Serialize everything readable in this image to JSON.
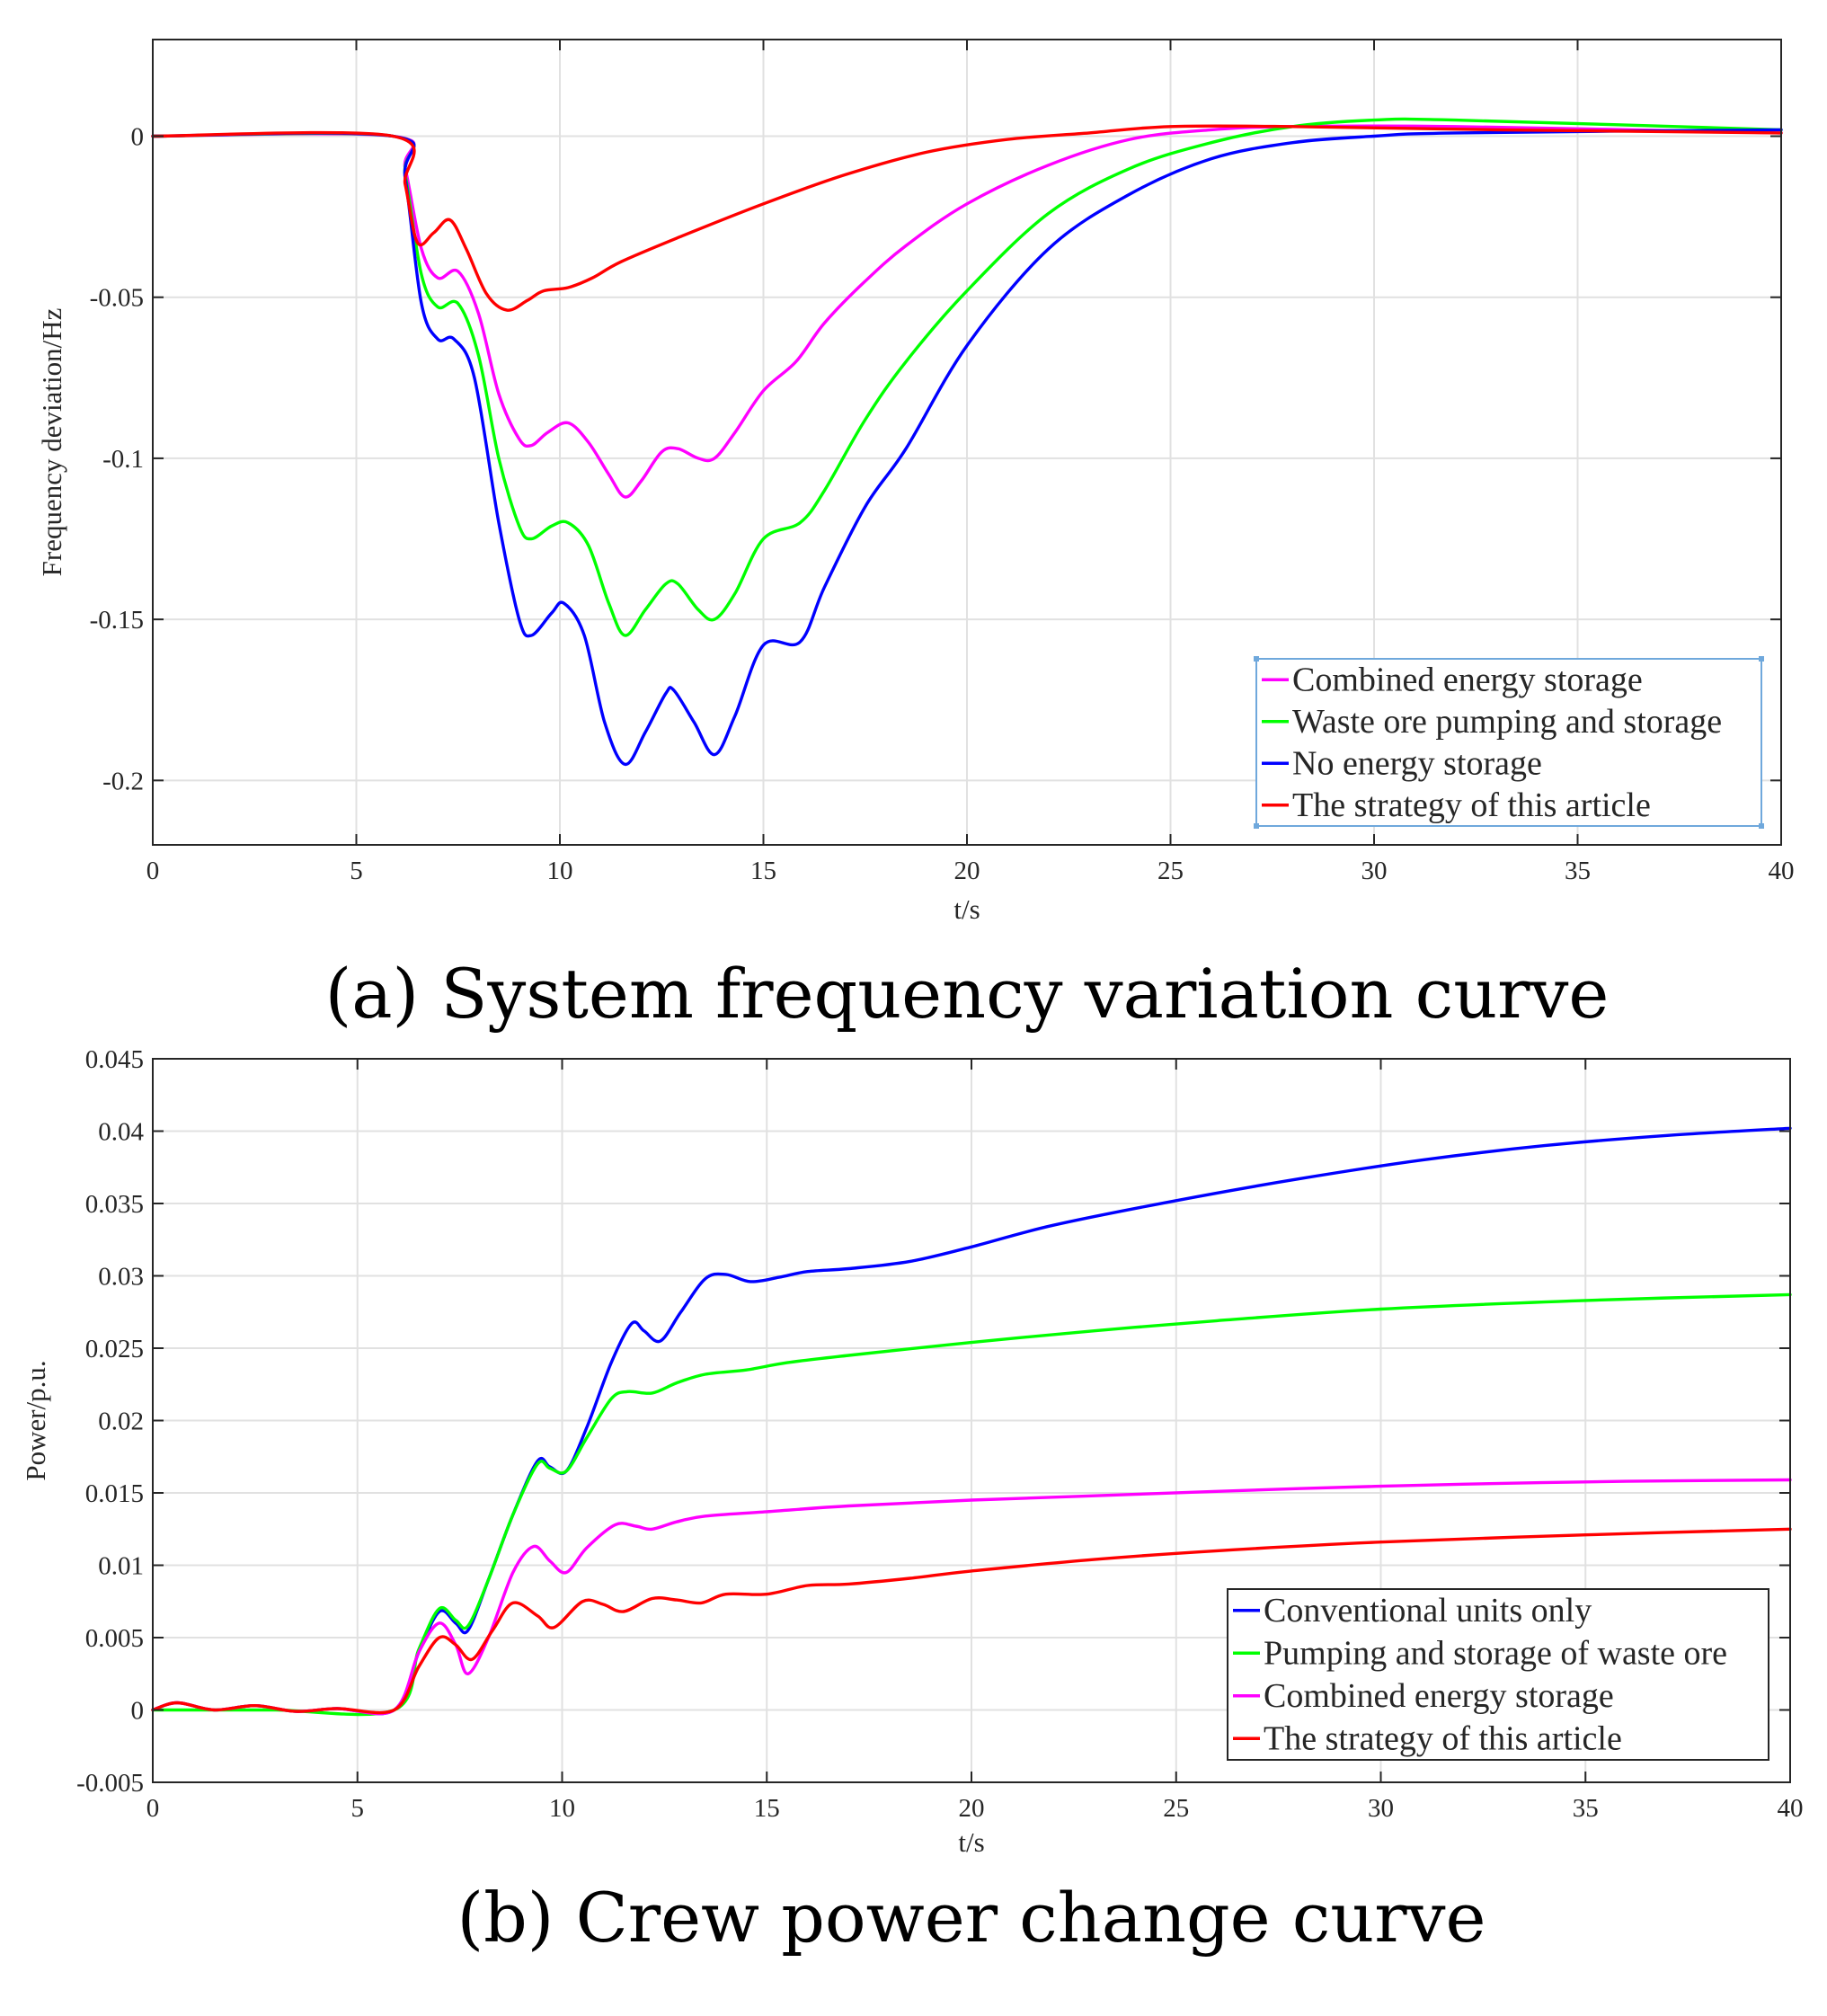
{
  "chart_data": [
    {
      "type": "line",
      "caption": "(a) System frequency variation curve",
      "xlabel": "t/s",
      "ylabel": "Frequency deviation/Hz",
      "xlim": [
        0,
        40
      ],
      "ylim": [
        -0.22,
        0.03
      ],
      "xticks": [
        0,
        5,
        10,
        15,
        20,
        25,
        30,
        35,
        40
      ],
      "yticks": [
        0,
        -0.05,
        -0.1,
        -0.15,
        -0.2
      ],
      "ytick_labels": [
        "0",
        "-0.05",
        "-0.1",
        "-0.15",
        "-0.2"
      ],
      "grid": true,
      "legend_position": "bottom-right",
      "series": [
        {
          "name": "Combined energy storage",
          "color": "#ff00ff",
          "points": [
            [
              0,
              0
            ],
            [
              5.9,
              0
            ],
            [
              6.2,
              -0.01
            ],
            [
              6.6,
              -0.035
            ],
            [
              7.0,
              -0.044
            ],
            [
              7.5,
              -0.042
            ],
            [
              8.0,
              -0.055
            ],
            [
              8.5,
              -0.08
            ],
            [
              9.0,
              -0.094
            ],
            [
              9.3,
              -0.096
            ],
            [
              9.7,
              -0.092
            ],
            [
              10.2,
              -0.089
            ],
            [
              10.7,
              -0.095
            ],
            [
              11.2,
              -0.105
            ],
            [
              11.6,
              -0.112
            ],
            [
              12.0,
              -0.107
            ],
            [
              12.5,
              -0.098
            ],
            [
              12.9,
              -0.097
            ],
            [
              13.4,
              -0.1
            ],
            [
              13.8,
              -0.1
            ],
            [
              14.3,
              -0.092
            ],
            [
              15.0,
              -0.079
            ],
            [
              15.8,
              -0.07
            ],
            [
              16.5,
              -0.058
            ],
            [
              17.5,
              -0.045
            ],
            [
              18.5,
              -0.034
            ],
            [
              20.0,
              -0.021
            ],
            [
              22.0,
              -0.009
            ],
            [
              24.0,
              -0.001
            ],
            [
              26.0,
              0.002
            ],
            [
              28.0,
              0.003
            ],
            [
              32.0,
              0.003
            ],
            [
              40.0,
              0.001
            ]
          ]
        },
        {
          "name": "Waste ore pumping and storage",
          "color": "#00ff00",
          "points": [
            [
              0,
              0
            ],
            [
              5.9,
              0
            ],
            [
              6.2,
              -0.012
            ],
            [
              6.6,
              -0.043
            ],
            [
              7.0,
              -0.053
            ],
            [
              7.5,
              -0.052
            ],
            [
              8.0,
              -0.068
            ],
            [
              8.5,
              -0.1
            ],
            [
              9.0,
              -0.121
            ],
            [
              9.3,
              -0.125
            ],
            [
              9.8,
              -0.121
            ],
            [
              10.2,
              -0.12
            ],
            [
              10.7,
              -0.127
            ],
            [
              11.2,
              -0.145
            ],
            [
              11.6,
              -0.155
            ],
            [
              12.1,
              -0.147
            ],
            [
              12.6,
              -0.139
            ],
            [
              12.9,
              -0.139
            ],
            [
              13.4,
              -0.147
            ],
            [
              13.8,
              -0.15
            ],
            [
              14.3,
              -0.142
            ],
            [
              15.0,
              -0.125
            ],
            [
              15.9,
              -0.12
            ],
            [
              16.5,
              -0.11
            ],
            [
              17.5,
              -0.088
            ],
            [
              18.5,
              -0.07
            ],
            [
              20.0,
              -0.048
            ],
            [
              22.0,
              -0.024
            ],
            [
              24.0,
              -0.01
            ],
            [
              26.0,
              -0.002
            ],
            [
              28.0,
              0.003
            ],
            [
              30.0,
              0.005
            ],
            [
              32.0,
              0.005
            ],
            [
              40.0,
              0.002
            ]
          ]
        },
        {
          "name": "No energy storage",
          "color": "#0000ff",
          "points": [
            [
              0,
              0
            ],
            [
              5.9,
              0
            ],
            [
              6.2,
              -0.013
            ],
            [
              6.6,
              -0.052
            ],
            [
              7.0,
              -0.063
            ],
            [
              7.4,
              -0.063
            ],
            [
              7.9,
              -0.075
            ],
            [
              8.5,
              -0.12
            ],
            [
              9.0,
              -0.15
            ],
            [
              9.3,
              -0.155
            ],
            [
              9.8,
              -0.148
            ],
            [
              10.1,
              -0.145
            ],
            [
              10.6,
              -0.155
            ],
            [
              11.1,
              -0.182
            ],
            [
              11.6,
              -0.195
            ],
            [
              12.1,
              -0.185
            ],
            [
              12.6,
              -0.173
            ],
            [
              12.8,
              -0.172
            ],
            [
              13.3,
              -0.182
            ],
            [
              13.8,
              -0.192
            ],
            [
              14.3,
              -0.18
            ],
            [
              15.0,
              -0.158
            ],
            [
              15.9,
              -0.157
            ],
            [
              16.5,
              -0.14
            ],
            [
              17.5,
              -0.115
            ],
            [
              18.5,
              -0.097
            ],
            [
              20.0,
              -0.065
            ],
            [
              22.0,
              -0.035
            ],
            [
              24.0,
              -0.018
            ],
            [
              26.0,
              -0.007
            ],
            [
              28.0,
              -0.002
            ],
            [
              30.0,
              0
            ],
            [
              32.0,
              0.001
            ],
            [
              40.0,
              0.002
            ]
          ]
        },
        {
          "name": "The strategy of this article",
          "color": "#ff0000",
          "points": [
            [
              0,
              0
            ],
            [
              5.9,
              0
            ],
            [
              6.2,
              -0.015
            ],
            [
              6.5,
              -0.033
            ],
            [
              6.9,
              -0.03
            ],
            [
              7.3,
              -0.026
            ],
            [
              7.7,
              -0.035
            ],
            [
              8.2,
              -0.049
            ],
            [
              8.7,
              -0.054
            ],
            [
              9.2,
              -0.051
            ],
            [
              9.6,
              -0.048
            ],
            [
              10.2,
              -0.047
            ],
            [
              10.8,
              -0.044
            ],
            [
              11.5,
              -0.039
            ],
            [
              13.0,
              -0.031
            ],
            [
              15.0,
              -0.021
            ],
            [
              17.0,
              -0.012
            ],
            [
              19.0,
              -0.005
            ],
            [
              21.0,
              -0.001
            ],
            [
              23.0,
              0.001
            ],
            [
              25.0,
              0.003
            ],
            [
              28.0,
              0.003
            ],
            [
              33.0,
              0.002
            ],
            [
              40.0,
              0.001
            ]
          ]
        }
      ]
    },
    {
      "type": "line",
      "caption": "(b) Crew power change curve",
      "xlabel": "t/s",
      "ylabel": "Power/p.u.",
      "xlim": [
        0,
        40
      ],
      "ylim": [
        -0.005,
        0.045
      ],
      "xticks": [
        0,
        5,
        10,
        15,
        20,
        25,
        30,
        35,
        40
      ],
      "yticks": [
        -0.005,
        0,
        0.005,
        0.01,
        0.015,
        0.02,
        0.025,
        0.03,
        0.035,
        0.04,
        0.045
      ],
      "ytick_labels": [
        "-0.005",
        "0",
        "0.005",
        "0.01",
        "0.015",
        "0.02",
        "0.025",
        "0.03",
        "0.035",
        "0.04",
        "0.045"
      ],
      "grid": true,
      "legend_position": "bottom-right",
      "series": [
        {
          "name": "Conventional units only",
          "color": "#0000ff",
          "points": [
            [
              0,
              0
            ],
            [
              0.6,
              0.0005
            ],
            [
              1.5,
              0
            ],
            [
              2.5,
              0.0003
            ],
            [
              3.5,
              -0.0001
            ],
            [
              4.5,
              0.0001
            ],
            [
              5.9,
              0
            ],
            [
              6.5,
              0.004
            ],
            [
              7.0,
              0.0068
            ],
            [
              7.4,
              0.006
            ],
            [
              7.7,
              0.0055
            ],
            [
              8.2,
              0.009
            ],
            [
              8.8,
              0.0135
            ],
            [
              9.4,
              0.0172
            ],
            [
              9.7,
              0.0168
            ],
            [
              10.1,
              0.0165
            ],
            [
              10.6,
              0.0195
            ],
            [
              11.2,
              0.024
            ],
            [
              11.7,
              0.0267
            ],
            [
              12.0,
              0.0262
            ],
            [
              12.4,
              0.0255
            ],
            [
              12.9,
              0.0275
            ],
            [
              13.5,
              0.0298
            ],
            [
              14.0,
              0.0301
            ],
            [
              14.6,
              0.0296
            ],
            [
              15.3,
              0.0299
            ],
            [
              16.0,
              0.0303
            ],
            [
              17.0,
              0.0305
            ],
            [
              18.5,
              0.031
            ],
            [
              20.0,
              0.032
            ],
            [
              22.0,
              0.0335
            ],
            [
              25.0,
              0.0352
            ],
            [
              28.0,
              0.0367
            ],
            [
              31.0,
              0.038
            ],
            [
              34.0,
              0.039
            ],
            [
              37.0,
              0.0397
            ],
            [
              40.0,
              0.0402
            ]
          ]
        },
        {
          "name": "Pumping and storage of waste ore",
          "color": "#00ff00",
          "points": [
            [
              0,
              0
            ],
            [
              1.5,
              0
            ],
            [
              3.0,
              0
            ],
            [
              5.9,
              0
            ],
            [
              6.5,
              0.0042
            ],
            [
              7.0,
              0.007
            ],
            [
              7.4,
              0.0062
            ],
            [
              7.7,
              0.0058
            ],
            [
              8.2,
              0.009
            ],
            [
              8.8,
              0.0135
            ],
            [
              9.4,
              0.017
            ],
            [
              9.7,
              0.0167
            ],
            [
              10.1,
              0.0165
            ],
            [
              10.6,
              0.0188
            ],
            [
              11.2,
              0.0215
            ],
            [
              11.6,
              0.022
            ],
            [
              12.2,
              0.0219
            ],
            [
              12.8,
              0.0226
            ],
            [
              13.5,
              0.0232
            ],
            [
              14.5,
              0.0235
            ],
            [
              15.5,
              0.024
            ],
            [
              17.0,
              0.0245
            ],
            [
              20.0,
              0.0254
            ],
            [
              23.0,
              0.0262
            ],
            [
              26.0,
              0.0269
            ],
            [
              30.0,
              0.0277
            ],
            [
              35.0,
              0.0283
            ],
            [
              40.0,
              0.0287
            ]
          ]
        },
        {
          "name": "Combined energy storage",
          "color": "#ff00ff",
          "points": [
            [
              0,
              0
            ],
            [
              0.6,
              0.0005
            ],
            [
              1.5,
              0
            ],
            [
              2.5,
              0.0003
            ],
            [
              3.5,
              -0.0001
            ],
            [
              4.5,
              0.0001
            ],
            [
              5.9,
              0
            ],
            [
              6.5,
              0.004
            ],
            [
              7.0,
              0.006
            ],
            [
              7.4,
              0.0045
            ],
            [
              7.7,
              0.0025
            ],
            [
              8.2,
              0.005
            ],
            [
              8.8,
              0.0095
            ],
            [
              9.3,
              0.0113
            ],
            [
              9.7,
              0.0103
            ],
            [
              10.1,
              0.0095
            ],
            [
              10.6,
              0.0112
            ],
            [
              11.3,
              0.0128
            ],
            [
              11.8,
              0.0127
            ],
            [
              12.2,
              0.0125
            ],
            [
              12.8,
              0.013
            ],
            [
              13.5,
              0.0134
            ],
            [
              15.0,
              0.0137
            ],
            [
              17.0,
              0.0141
            ],
            [
              20.0,
              0.0145
            ],
            [
              24.0,
              0.0149
            ],
            [
              28.0,
              0.0153
            ],
            [
              32.0,
              0.0156
            ],
            [
              36.0,
              0.0158
            ],
            [
              40.0,
              0.0159
            ]
          ]
        },
        {
          "name": "The strategy of this article",
          "color": "#ff0000",
          "points": [
            [
              0,
              0
            ],
            [
              0.6,
              0.0005
            ],
            [
              1.5,
              0
            ],
            [
              2.5,
              0.0003
            ],
            [
              3.5,
              -0.0001
            ],
            [
              4.5,
              0.0001
            ],
            [
              5.9,
              0
            ],
            [
              6.5,
              0.003
            ],
            [
              7.0,
              0.005
            ],
            [
              7.4,
              0.0045
            ],
            [
              7.8,
              0.0035
            ],
            [
              8.3,
              0.0055
            ],
            [
              8.8,
              0.0074
            ],
            [
              9.4,
              0.0065
            ],
            [
              9.8,
              0.0057
            ],
            [
              10.5,
              0.0075
            ],
            [
              11.0,
              0.0073
            ],
            [
              11.5,
              0.0068
            ],
            [
              12.2,
              0.0077
            ],
            [
              12.8,
              0.0076
            ],
            [
              13.4,
              0.0074
            ],
            [
              14.0,
              0.008
            ],
            [
              15.0,
              0.008
            ],
            [
              16.0,
              0.0086
            ],
            [
              17.0,
              0.0087
            ],
            [
              18.5,
              0.0091
            ],
            [
              20.0,
              0.0096
            ],
            [
              23.0,
              0.0104
            ],
            [
              26.0,
              0.011
            ],
            [
              30.0,
              0.0116
            ],
            [
              35.0,
              0.0121
            ],
            [
              40.0,
              0.0125
            ]
          ]
        }
      ]
    }
  ]
}
